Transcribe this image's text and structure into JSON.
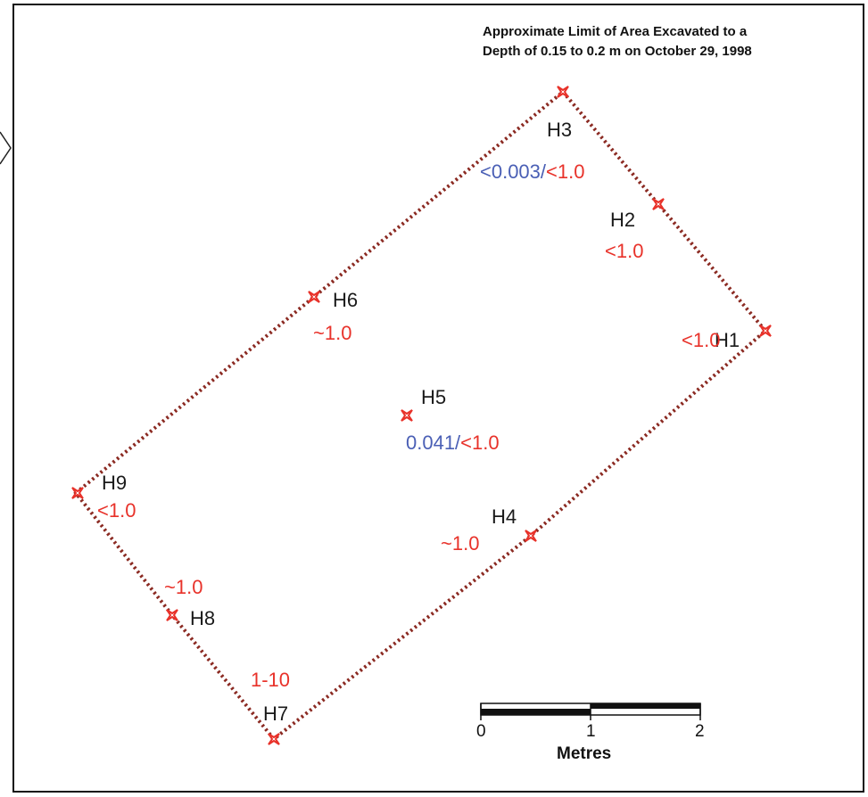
{
  "title": {
    "line1": "Approximate Limit of Area Excavated to a",
    "line2": "Depth of 0.15 to 0.2 m on October 29, 1998"
  },
  "colors": {
    "boundary": "#8b2a22",
    "marker": "#e8322a",
    "label_dark": "#1a1a1a",
    "value_red": "#e8322a",
    "value_blue": "#4a5fb5"
  },
  "points": [
    {
      "id": "H1",
      "value_red": "<1.0"
    },
    {
      "id": "H2",
      "value_red": "<1.0"
    },
    {
      "id": "H3",
      "value_blue": "<0.003/",
      "value_red": "<1.0"
    },
    {
      "id": "H4",
      "value_red": "~1.0"
    },
    {
      "id": "H5",
      "value_blue": "0.041/",
      "value_red": "<1.0"
    },
    {
      "id": "H6",
      "value_red": "~1.0"
    },
    {
      "id": "H7",
      "value_red": "1-10"
    },
    {
      "id": "H8",
      "value_red": "~1.0"
    },
    {
      "id": "H9",
      "value_red": "<1.0"
    }
  ],
  "scale_bar": {
    "ticks": [
      "0",
      "1",
      "2"
    ],
    "unit": "Metres"
  }
}
